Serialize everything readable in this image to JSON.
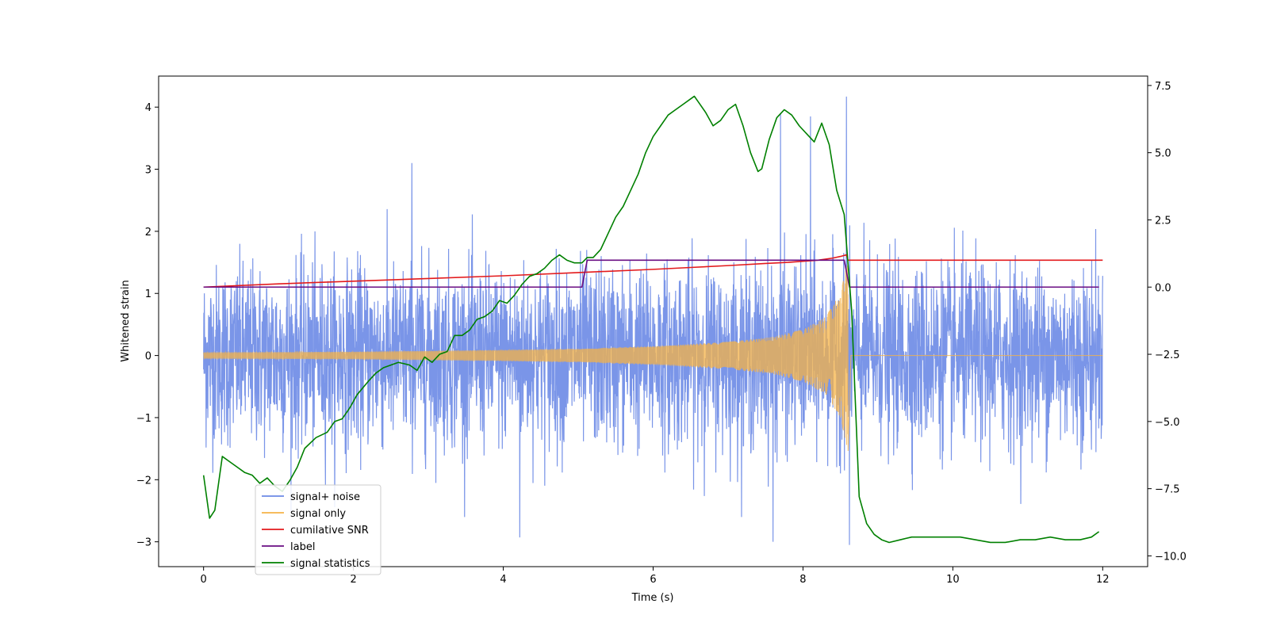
{
  "chart_data": {
    "type": "line",
    "title": "",
    "xlabel": "Time (s)",
    "ylabel": "Whitened strain",
    "y2label": "",
    "xlim": [
      -0.6,
      12.6
    ],
    "ylim": [
      -3.4,
      4.5
    ],
    "y2lim": [
      -10.4,
      7.85
    ],
    "grid": false,
    "legend_position": "lower-left",
    "xticks": [
      0,
      2,
      4,
      6,
      8,
      10,
      12
    ],
    "xtick_labels": [
      "0",
      "2",
      "4",
      "6",
      "8",
      "10",
      "12"
    ],
    "yticks": [
      -3,
      -2,
      -1,
      0,
      1,
      2,
      3,
      4
    ],
    "ytick_labels": [
      "−3",
      "−2",
      "−1",
      "0",
      "1",
      "2",
      "3",
      "4"
    ],
    "y2ticks": [
      -10,
      -7.5,
      -5,
      -2.5,
      0,
      2.5,
      5,
      7.5
    ],
    "y2tick_labels": [
      "−10.0",
      "−7.5",
      "−5.0",
      "−2.5",
      "0.0",
      "2.5",
      "5.0",
      "7.5"
    ],
    "series": [
      {
        "name": "signal+ noise",
        "color": "#6b8ae6",
        "axis": "left",
        "kind": "noise",
        "x_range": [
          0,
          12
        ],
        "typical_range": [
          -1.6,
          1.6
        ],
        "max": 4.17,
        "min": -3.05,
        "peaks": [
          [
            2.78,
            3.1
          ],
          [
            7.7,
            3.9
          ],
          [
            8.1,
            3.85
          ],
          [
            8.58,
            4.17
          ],
          [
            4.22,
            -2.93
          ],
          [
            7.6,
            -3.0
          ],
          [
            8.62,
            -3.05
          ]
        ]
      },
      {
        "name": "signal only",
        "color": "#f5b347",
        "axis": "left",
        "kind": "chirp",
        "x_range": [
          0,
          12
        ],
        "merger_time": 8.6,
        "envelope": [
          [
            0,
            0.05
          ],
          [
            2,
            0.06
          ],
          [
            4,
            0.09
          ],
          [
            5,
            0.11
          ],
          [
            6,
            0.15
          ],
          [
            7,
            0.22
          ],
          [
            7.6,
            0.3
          ],
          [
            8.0,
            0.42
          ],
          [
            8.3,
            0.62
          ],
          [
            8.5,
            1.0
          ],
          [
            8.6,
            1.55
          ]
        ]
      },
      {
        "name": "cumilative SNR",
        "color": "#e31a1c",
        "axis": "right",
        "x": [
          0,
          1,
          2,
          3,
          4,
          5,
          6,
          6.5,
          7,
          7.5,
          7.8,
          8.0,
          8.2,
          8.4,
          8.5,
          8.58,
          8.6,
          12
        ],
        "values": [
          0.0,
          0.12,
          0.22,
          0.32,
          0.42,
          0.54,
          0.66,
          0.73,
          0.8,
          0.88,
          0.92,
          0.96,
          1.0,
          1.08,
          1.14,
          1.2,
          1.0,
          1.0
        ]
      },
      {
        "name": "label",
        "color": "#6a0d83",
        "axis": "right",
        "x": [
          0,
          5.05,
          5.12,
          8.55,
          8.62,
          11.95
        ],
        "values": [
          0,
          0,
          1,
          1,
          0,
          0
        ]
      },
      {
        "name": "signal statistics",
        "color": "#008000",
        "axis": "right",
        "x": [
          0,
          0.08,
          0.15,
          0.25,
          0.35,
          0.45,
          0.55,
          0.65,
          0.75,
          0.85,
          0.95,
          1.05,
          1.15,
          1.25,
          1.35,
          1.5,
          1.65,
          1.75,
          1.85,
          1.95,
          2.05,
          2.2,
          2.3,
          2.4,
          2.5,
          2.6,
          2.75,
          2.85,
          2.95,
          3.05,
          3.15,
          3.25,
          3.35,
          3.45,
          3.55,
          3.65,
          3.75,
          3.85,
          3.95,
          4.05,
          4.15,
          4.25,
          4.35,
          4.45,
          4.55,
          4.65,
          4.75,
          4.85,
          4.95,
          5.05,
          5.12,
          5.2,
          5.3,
          5.4,
          5.5,
          5.6,
          5.7,
          5.8,
          5.9,
          6.0,
          6.1,
          6.2,
          6.3,
          6.4,
          6.5,
          6.55,
          6.6,
          6.7,
          6.8,
          6.9,
          7.0,
          7.1,
          7.2,
          7.3,
          7.4,
          7.45,
          7.55,
          7.65,
          7.75,
          7.85,
          7.95,
          8.05,
          8.15,
          8.25,
          8.35,
          8.45,
          8.55,
          8.65,
          8.75,
          8.85,
          8.95,
          9.05,
          9.15,
          9.3,
          9.45,
          9.6,
          9.75,
          9.9,
          10.1,
          10.3,
          10.5,
          10.7,
          10.9,
          11.1,
          11.3,
          11.5,
          11.7,
          11.85,
          11.95
        ],
        "values": [
          -7.0,
          -8.6,
          -8.3,
          -6.3,
          -6.5,
          -6.7,
          -6.9,
          -7.0,
          -7.3,
          -7.1,
          -7.4,
          -7.6,
          -7.2,
          -6.7,
          -6.0,
          -5.6,
          -5.4,
          -5.0,
          -4.9,
          -4.5,
          -4.0,
          -3.5,
          -3.2,
          -3.0,
          -2.9,
          -2.8,
          -2.9,
          -3.1,
          -2.6,
          -2.8,
          -2.5,
          -2.4,
          -1.8,
          -1.8,
          -1.6,
          -1.2,
          -1.1,
          -0.9,
          -0.5,
          -0.6,
          -0.3,
          0.1,
          0.4,
          0.5,
          0.7,
          1.0,
          1.2,
          1.0,
          0.9,
          0.9,
          1.1,
          1.1,
          1.4,
          2.0,
          2.6,
          3.0,
          3.6,
          4.2,
          5.0,
          5.6,
          6.0,
          6.4,
          6.6,
          6.8,
          7.0,
          7.1,
          6.9,
          6.5,
          6.0,
          6.2,
          6.6,
          6.8,
          6.0,
          5.0,
          4.3,
          4.4,
          5.5,
          6.3,
          6.6,
          6.4,
          6.0,
          5.7,
          5.4,
          6.1,
          5.3,
          3.6,
          2.7,
          -0.9,
          -7.8,
          -8.8,
          -9.2,
          -9.4,
          -9.5,
          -9.4,
          -9.3,
          -9.3,
          -9.3,
          -9.3,
          -9.3,
          -9.4,
          -9.5,
          -9.5,
          -9.4,
          -9.4,
          -9.3,
          -9.4,
          -9.4,
          -9.3,
          -9.1
        ]
      }
    ]
  }
}
